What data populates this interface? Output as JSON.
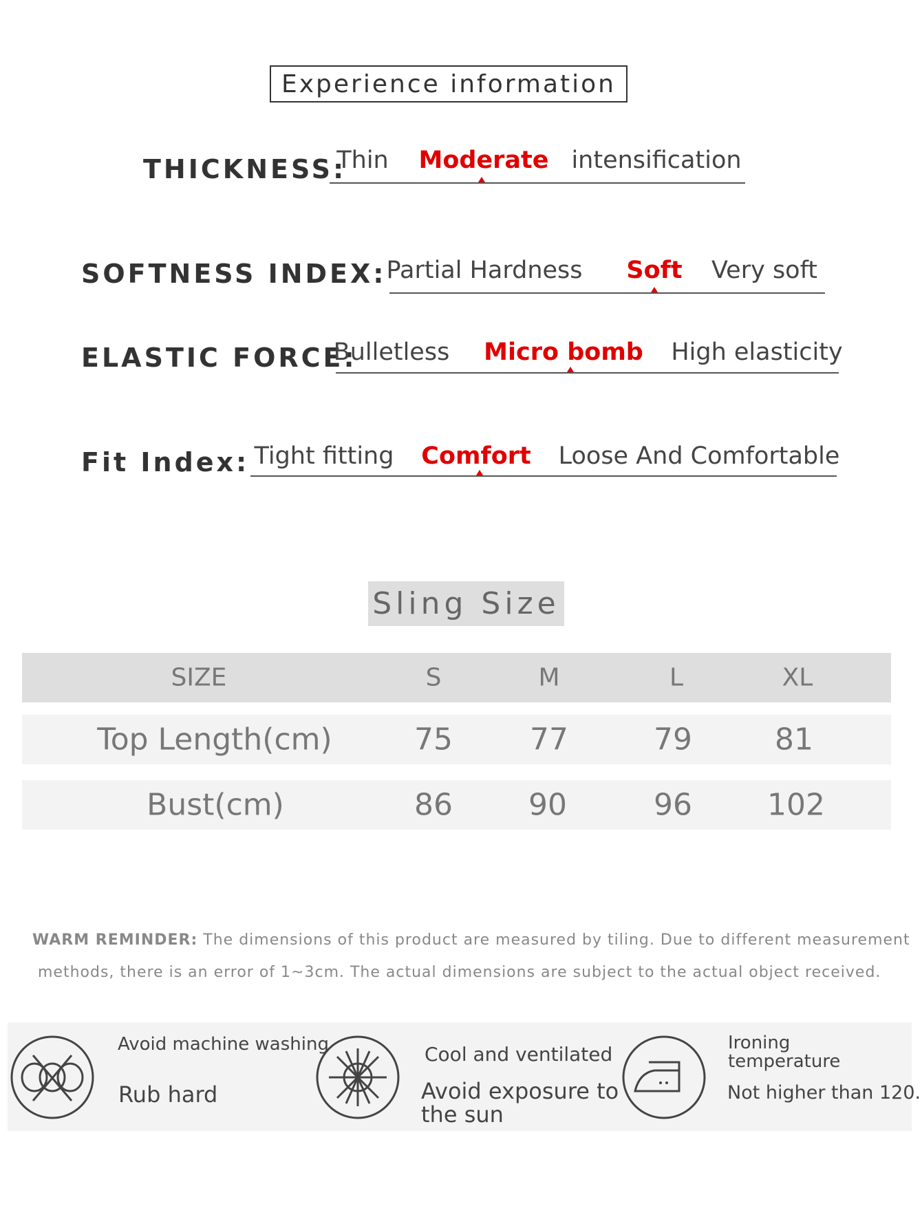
{
  "title": "Experience information",
  "attributes": [
    {
      "label": "THICKNESS:",
      "options": [
        "Thin",
        "Moderate",
        "intensification"
      ],
      "selected": 1
    },
    {
      "label": "SOFTNESS INDEX:",
      "options": [
        "Partial Hardness",
        "Soft",
        "Very soft"
      ],
      "selected": 1
    },
    {
      "label": "ELASTIC FORCE:",
      "options": [
        "Bulletless",
        "Micro bomb",
        "High elasticity"
      ],
      "selected": 1
    },
    {
      "label": "Fit Index:",
      "options": [
        "Tight fitting",
        "Comfort",
        "Loose And Comfortable"
      ],
      "selected": 1
    }
  ],
  "accent_color": "#e00000",
  "size_table": {
    "title": "Sling Size",
    "headers": [
      "SIZE",
      "S",
      "M",
      "L",
      "XL"
    ],
    "rows": [
      [
        "Top Length(cm)",
        "75",
        "77",
        "79",
        "81"
      ],
      [
        "Bust(cm)",
        "86",
        "90",
        "96",
        "102"
      ]
    ]
  },
  "reminder": {
    "label": "WARM REMINDER:",
    "line1": " The dimensions of this product are measured by tiling. Due to different measurement",
    "line2": "methods, there is an error of 1~3cm. The actual dimensions are subject to the actual object received."
  },
  "care": [
    {
      "icon": "no-machine-wash-icon",
      "title": "Avoid machine washing",
      "detail": "Rub hard"
    },
    {
      "icon": "no-sun-icon",
      "title": "Cool and ventilated",
      "detail": "Avoid exposure to the sun"
    },
    {
      "icon": "iron-icon",
      "title": "Ironing temperature",
      "detail": "Not higher than 120."
    }
  ]
}
